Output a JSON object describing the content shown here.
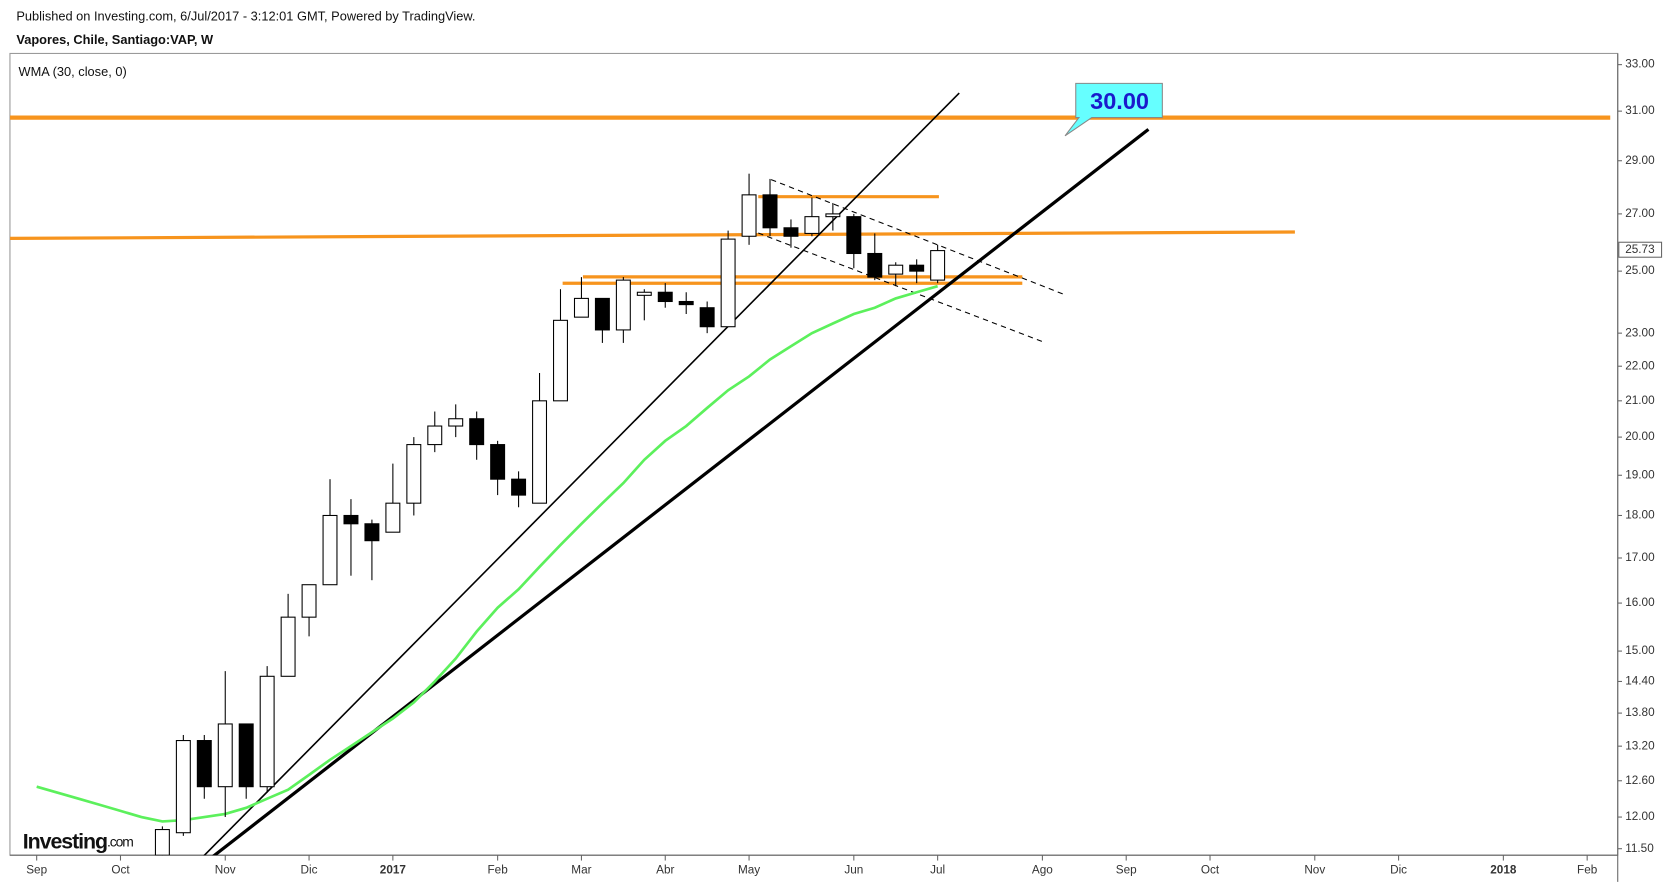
{
  "header": {
    "published": "Published on Investing.com, 6/Jul/2017 - 3:12:01 GMT, Powered by TradingView.",
    "symbol": "Vapores, Chile, Santiago:VAP, W"
  },
  "logo": {
    "main": "Investing",
    "suffix": ".com"
  },
  "chart_data": {
    "type": "candlestick",
    "categories": [
      "Sep",
      null,
      null,
      null,
      "Oct",
      null,
      null,
      null,
      null,
      "Nov",
      null,
      null,
      null,
      "Dic",
      null,
      null,
      null,
      "2017",
      null,
      null,
      null,
      null,
      "Feb",
      null,
      null,
      null,
      "Mar",
      null,
      null,
      null,
      "Abr",
      null,
      null,
      null,
      "May",
      null,
      null,
      null,
      null,
      "Jun",
      null,
      null,
      null,
      "Jul",
      null,
      null,
      null,
      null,
      "Ago",
      null,
      null,
      null,
      "Sep",
      null,
      null,
      null,
      "Oct",
      null,
      null,
      null,
      null,
      "Nov",
      null,
      null,
      null,
      "Dic",
      null,
      null,
      null,
      null,
      "2018",
      null,
      null,
      null,
      "Feb",
      null
    ],
    "open": [
      null,
      null,
      null,
      null,
      null,
      null,
      11.4,
      11.75,
      13.3,
      12.5,
      13.6,
      12.5,
      14.5,
      15.7,
      16.4,
      18.0,
      17.8,
      17.6,
      18.3,
      19.8,
      20.3,
      20.5,
      19.8,
      18.9,
      18.3,
      21.0,
      23.5,
      24.1,
      23.1,
      24.2,
      24.3,
      24.0,
      23.8,
      23.2,
      26.2,
      27.7,
      26.5,
      26.3,
      26.9,
      26.9,
      25.6,
      24.9,
      25.2,
      24.7,
      null,
      null,
      null,
      null,
      null,
      null,
      null,
      null,
      null,
      null,
      null,
      null,
      null,
      null,
      null,
      null,
      null,
      null,
      null,
      null,
      null,
      null,
      null,
      null,
      null,
      null,
      null,
      null,
      null,
      null,
      null,
      null
    ],
    "high": [
      null,
      null,
      null,
      null,
      null,
      null,
      11.85,
      13.4,
      13.4,
      14.6,
      13.6,
      14.7,
      16.2,
      16.4,
      18.9,
      18.4,
      17.9,
      19.3,
      20.0,
      20.7,
      20.9,
      20.7,
      19.9,
      19.1,
      21.8,
      24.4,
      24.8,
      24.1,
      24.8,
      24.4,
      24.6,
      24.3,
      24.0,
      26.4,
      28.5,
      28.3,
      26.8,
      27.6,
      27.4,
      27.0,
      26.3,
      25.3,
      25.4,
      25.9,
      null,
      null,
      null,
      null,
      null,
      null,
      null,
      null,
      null,
      null,
      null,
      null,
      null,
      null,
      null,
      null,
      null,
      null,
      null,
      null,
      null,
      null,
      null,
      null,
      null,
      null,
      null,
      null,
      null,
      null,
      null,
      null
    ],
    "low": [
      null,
      null,
      null,
      null,
      null,
      null,
      11.3,
      11.7,
      12.3,
      12.0,
      12.3,
      12.4,
      14.5,
      15.3,
      16.4,
      16.6,
      16.5,
      17.6,
      18.0,
      19.6,
      20.0,
      19.4,
      18.5,
      18.2,
      18.3,
      21.0,
      23.5,
      22.7,
      22.7,
      23.4,
      23.8,
      23.6,
      23.0,
      23.2,
      25.9,
      26.2,
      25.8,
      26.2,
      26.4,
      25.1,
      24.7,
      24.5,
      24.6,
      24.6,
      null,
      null,
      null,
      null,
      null,
      null,
      null,
      null,
      null,
      null,
      null,
      null,
      null,
      null,
      null,
      null,
      null,
      null,
      null,
      null,
      null,
      null,
      null,
      null,
      null,
      null,
      null,
      null,
      null,
      null,
      null,
      null
    ],
    "close": [
      null,
      null,
      null,
      null,
      null,
      null,
      11.8,
      13.3,
      12.5,
      13.6,
      12.5,
      14.5,
      15.7,
      16.4,
      18.0,
      17.8,
      17.4,
      18.3,
      19.8,
      20.3,
      20.5,
      19.8,
      18.9,
      18.5,
      21.0,
      23.4,
      24.1,
      23.1,
      24.7,
      24.3,
      24.0,
      23.9,
      23.2,
      26.1,
      27.7,
      26.5,
      26.2,
      26.9,
      27.0,
      25.6,
      24.8,
      25.2,
      25.0,
      25.7,
      null,
      null,
      null,
      null,
      null,
      null,
      null,
      null,
      null,
      null,
      null,
      null,
      null,
      null,
      null,
      null,
      null,
      null,
      null,
      null,
      null,
      null,
      null,
      null,
      null,
      null,
      null,
      null,
      null,
      null,
      null,
      null
    ],
    "up_color": "#ffffff",
    "down_color": "#000000",
    "series": [
      {
        "name": "WMA (30, close, 0)",
        "color": "#5cf05c",
        "values": [
          12.5,
          12.4,
          12.3,
          12.2,
          12.1,
          12.0,
          11.93,
          11.95,
          12.0,
          12.05,
          12.15,
          12.3,
          12.45,
          12.7,
          12.96,
          13.2,
          13.45,
          13.7,
          14.0,
          14.4,
          14.85,
          15.4,
          15.9,
          16.3,
          16.8,
          17.3,
          17.8,
          18.3,
          18.8,
          19.4,
          19.9,
          20.3,
          20.8,
          21.3,
          21.7,
          22.2,
          22.6,
          23.0,
          23.3,
          23.6,
          23.8,
          24.1,
          24.3,
          24.5,
          null,
          null,
          null,
          null,
          null,
          null,
          null,
          null,
          null,
          null,
          null,
          null,
          null,
          null,
          null,
          null,
          null,
          null,
          null,
          null,
          null,
          null,
          null,
          null,
          null,
          null,
          null,
          null,
          null,
          null,
          null,
          null
        ]
      }
    ],
    "last_price": 25.73,
    "annotations": [
      "30.00"
    ],
    "log_scale": true,
    "ylim": [
      11.4,
      33.5
    ],
    "yticks": [
      {
        "value": 11.5,
        "label": "11.50"
      },
      {
        "value": 12,
        "label": "12.00"
      },
      {
        "value": 12.6,
        "label": "12.60"
      },
      {
        "value": 13.2,
        "label": "13.20"
      },
      {
        "value": 13.8,
        "label": "13.80"
      },
      {
        "value": 14.4,
        "label": "14.40"
      },
      {
        "value": 15,
        "label": "15.00"
      },
      {
        "value": 16,
        "label": "16.00"
      },
      {
        "value": 17,
        "label": "17.00"
      },
      {
        "value": 18,
        "label": "18.00"
      },
      {
        "value": 19,
        "label": "19.00"
      },
      {
        "value": 20,
        "label": "20.00"
      },
      {
        "value": 21,
        "label": "21.00"
      },
      {
        "value": 22,
        "label": "22.00"
      },
      {
        "value": 23,
        "label": "23.00"
      },
      {
        "value": 25,
        "label": "25.00"
      },
      {
        "value": 27,
        "label": "27.00"
      },
      {
        "value": 29,
        "label": "29.00"
      },
      {
        "value": 31,
        "label": "31.00"
      },
      {
        "value": 33,
        "label": "33.00"
      }
    ]
  }
}
